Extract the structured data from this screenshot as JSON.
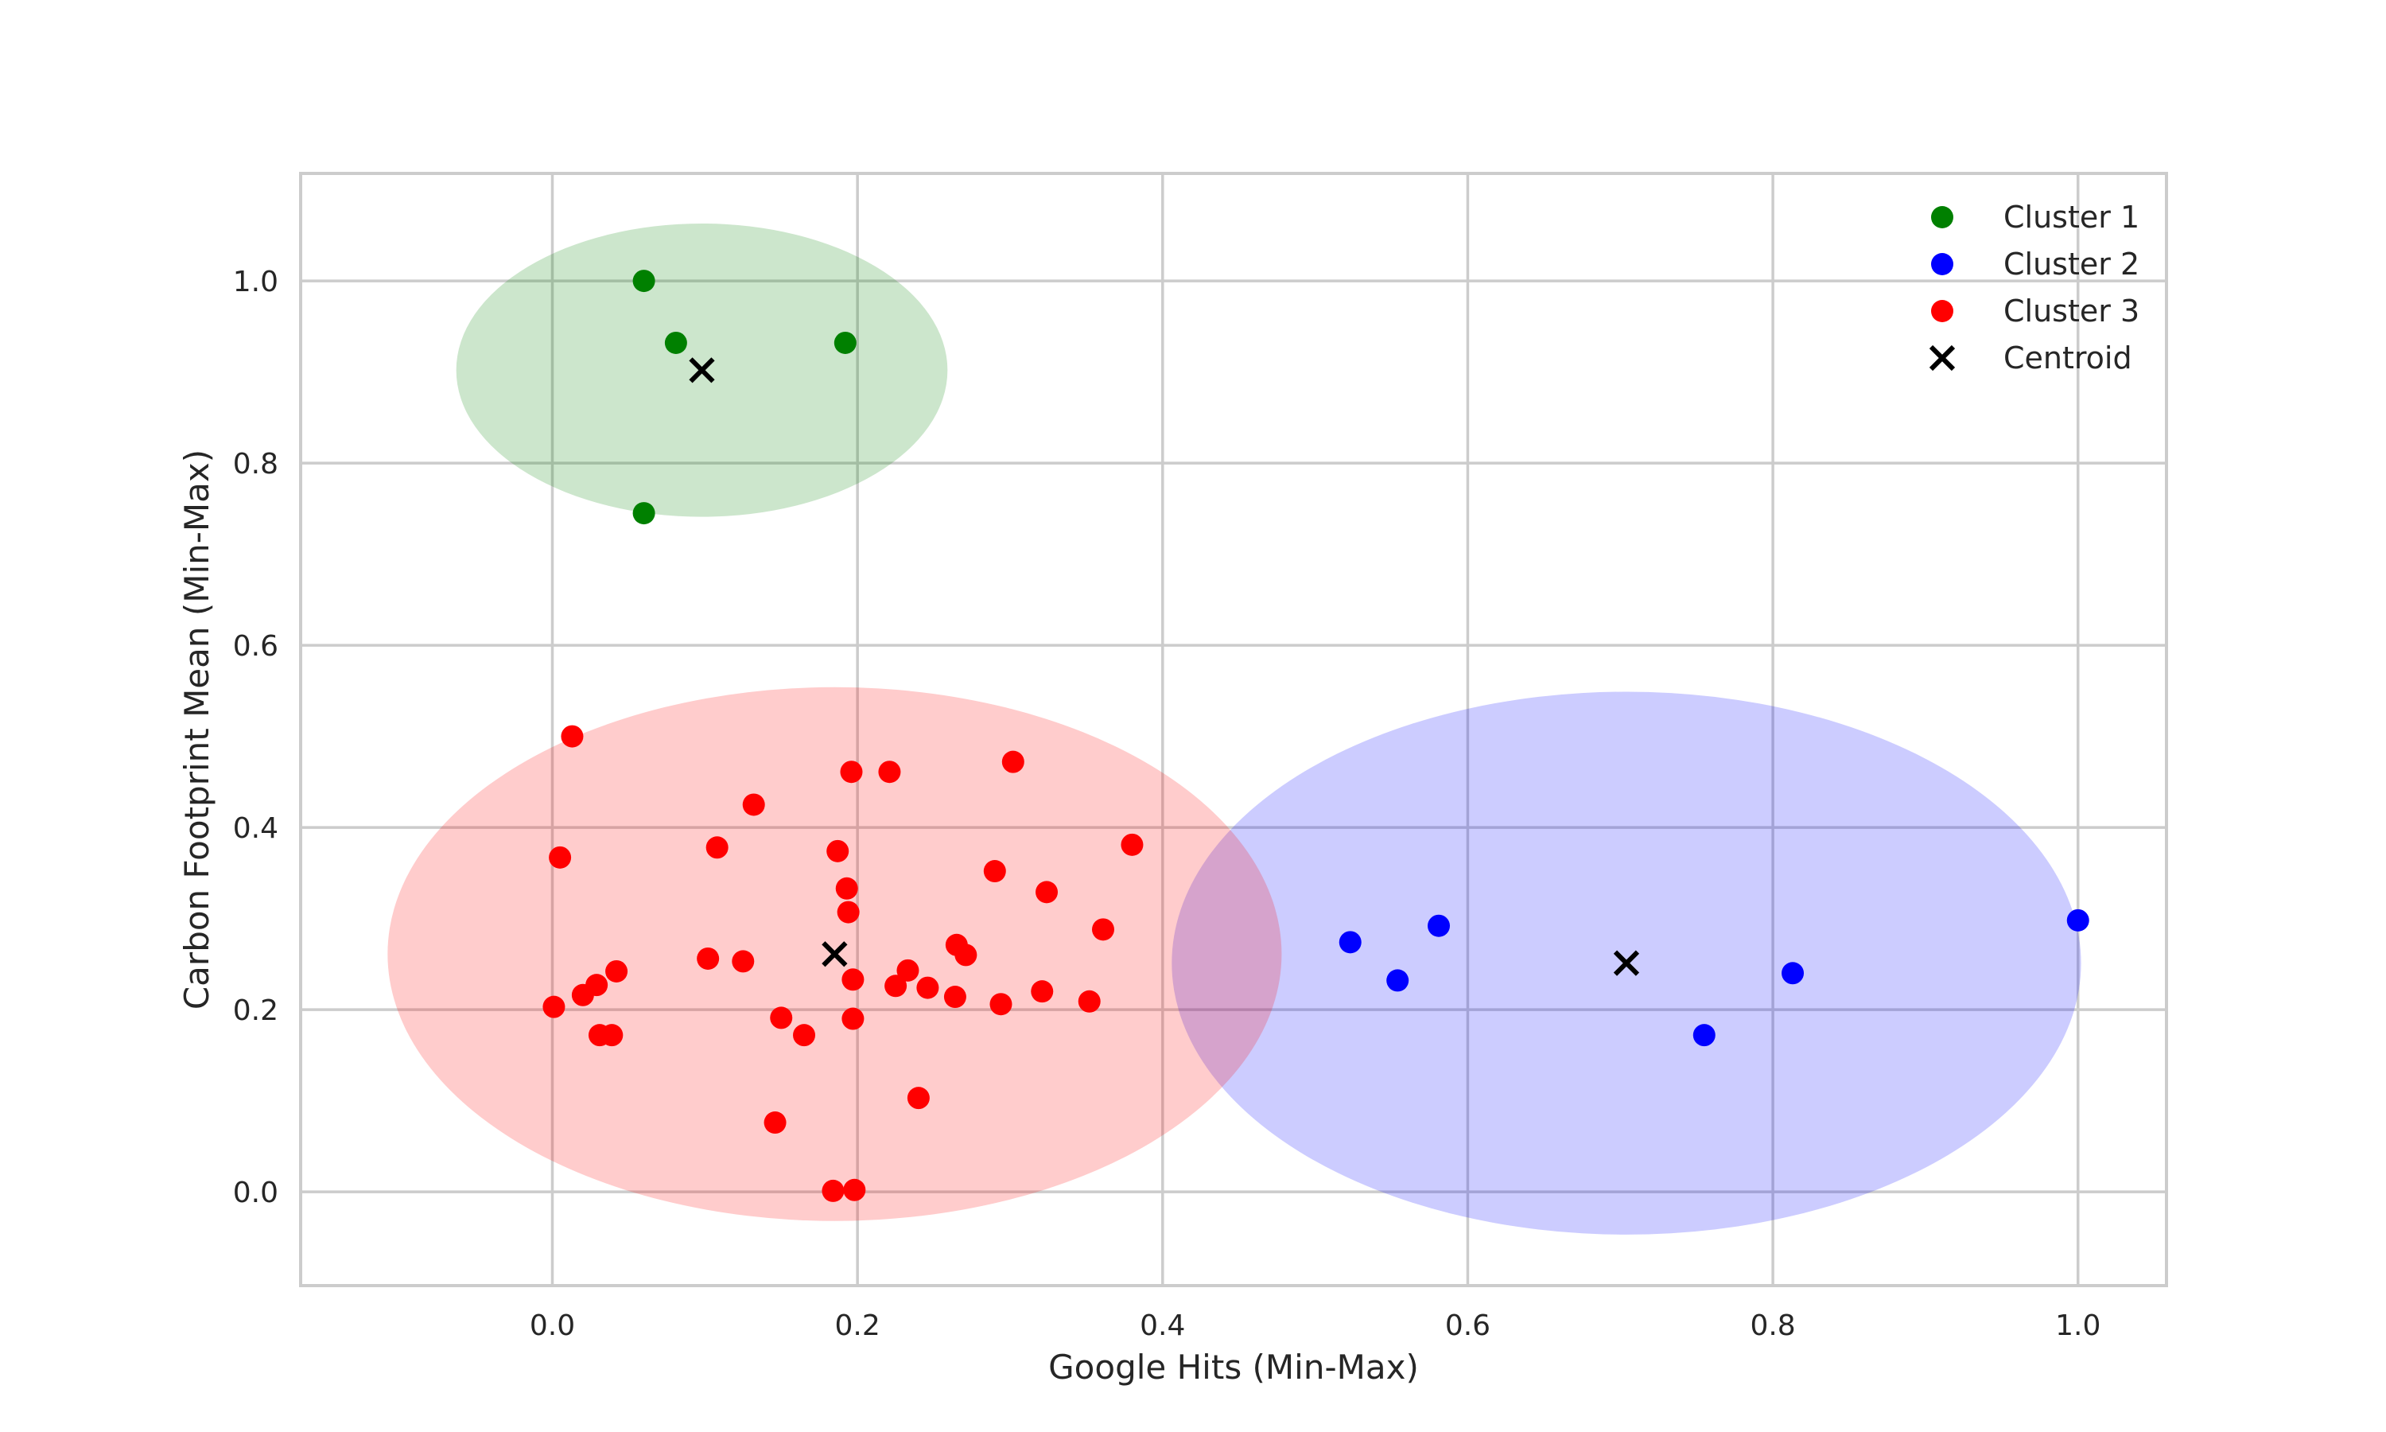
{
  "chart_data": {
    "type": "scatter",
    "title": "",
    "xlabel": "Google Hits (Min-Max)",
    "ylabel": "Carbon Footprint Mean (Min-Max)",
    "xlim": [
      -0.165,
      1.058
    ],
    "ylim": [
      -0.103,
      1.118
    ],
    "x_ticks": [
      0.0,
      0.2,
      0.4,
      0.6,
      0.8,
      1.0
    ],
    "y_ticks": [
      0.0,
      0.2,
      0.4,
      0.6,
      0.8,
      1.0
    ],
    "x_tick_labels": [
      "0.0",
      "0.2",
      "0.4",
      "0.6",
      "0.8",
      "1.0"
    ],
    "y_tick_labels": [
      "0.0",
      "0.2",
      "0.4",
      "0.6",
      "0.8",
      "1.0"
    ],
    "grid": true,
    "legend_position": "top-right",
    "series": [
      {
        "name": "Cluster 1",
        "color": "#008000",
        "ellipse_fill": "#008000",
        "ellipse": {
          "cx": 0.098,
          "cy": 0.902,
          "rx": 0.161,
          "ry": 0.161
        },
        "points": [
          {
            "x": 0.06,
            "y": 1.0
          },
          {
            "x": 0.081,
            "y": 0.932
          },
          {
            "x": 0.192,
            "y": 0.932
          },
          {
            "x": 0.06,
            "y": 0.745
          }
        ]
      },
      {
        "name": "Cluster 2",
        "color": "#0000ff",
        "ellipse_fill": "#0000ff",
        "ellipse": {
          "cx": 0.704,
          "cy": 0.251,
          "rx": 0.298,
          "ry": 0.298
        },
        "points": [
          {
            "x": 0.523,
            "y": 0.274
          },
          {
            "x": 0.554,
            "y": 0.232
          },
          {
            "x": 0.581,
            "y": 0.292
          },
          {
            "x": 0.755,
            "y": 0.172
          },
          {
            "x": 0.813,
            "y": 0.24
          },
          {
            "x": 1.0,
            "y": 0.298
          }
        ]
      },
      {
        "name": "Cluster 3",
        "color": "#ff0000",
        "ellipse_fill": "#ff0000",
        "ellipse": {
          "cx": 0.185,
          "cy": 0.261,
          "rx": 0.293,
          "ry": 0.293
        },
        "points": [
          {
            "x": 0.013,
            "y": 0.5
          },
          {
            "x": 0.005,
            "y": 0.367
          },
          {
            "x": 0.001,
            "y": 0.203
          },
          {
            "x": 0.02,
            "y": 0.216
          },
          {
            "x": 0.029,
            "y": 0.227
          },
          {
            "x": 0.042,
            "y": 0.242
          },
          {
            "x": 0.031,
            "y": 0.172
          },
          {
            "x": 0.039,
            "y": 0.172
          },
          {
            "x": 0.108,
            "y": 0.378
          },
          {
            "x": 0.132,
            "y": 0.425
          },
          {
            "x": 0.102,
            "y": 0.256
          },
          {
            "x": 0.125,
            "y": 0.253
          },
          {
            "x": 0.15,
            "y": 0.191
          },
          {
            "x": 0.165,
            "y": 0.172
          },
          {
            "x": 0.146,
            "y": 0.076
          },
          {
            "x": 0.187,
            "y": 0.374
          },
          {
            "x": 0.193,
            "y": 0.333
          },
          {
            "x": 0.194,
            "y": 0.307
          },
          {
            "x": 0.196,
            "y": 0.461
          },
          {
            "x": 0.221,
            "y": 0.461
          },
          {
            "x": 0.197,
            "y": 0.233
          },
          {
            "x": 0.197,
            "y": 0.19
          },
          {
            "x": 0.184,
            "y": 0.001
          },
          {
            "x": 0.198,
            "y": 0.002
          },
          {
            "x": 0.225,
            "y": 0.226
          },
          {
            "x": 0.233,
            "y": 0.243
          },
          {
            "x": 0.246,
            "y": 0.224
          },
          {
            "x": 0.24,
            "y": 0.103
          },
          {
            "x": 0.265,
            "y": 0.271
          },
          {
            "x": 0.271,
            "y": 0.26
          },
          {
            "x": 0.264,
            "y": 0.214
          },
          {
            "x": 0.29,
            "y": 0.352
          },
          {
            "x": 0.294,
            "y": 0.206
          },
          {
            "x": 0.302,
            "y": 0.472
          },
          {
            "x": 0.324,
            "y": 0.329
          },
          {
            "x": 0.321,
            "y": 0.22
          },
          {
            "x": 0.352,
            "y": 0.209
          },
          {
            "x": 0.361,
            "y": 0.288
          },
          {
            "x": 0.38,
            "y": 0.381
          }
        ]
      }
    ],
    "centroids": {
      "name": "Centroid",
      "color": "#000000",
      "points": [
        {
          "x": 0.098,
          "y": 0.902
        },
        {
          "x": 0.704,
          "y": 0.251
        },
        {
          "x": 0.185,
          "y": 0.261
        }
      ]
    }
  }
}
